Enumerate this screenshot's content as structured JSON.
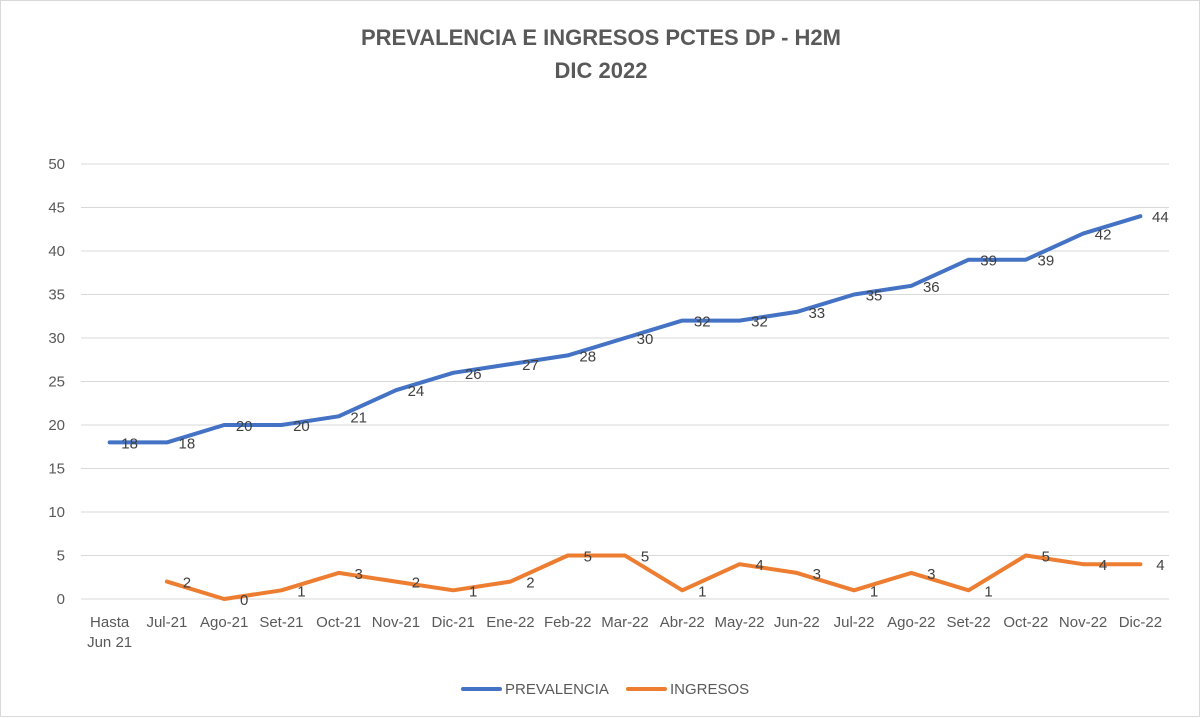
{
  "chart_data": {
    "type": "line",
    "title_lines": [
      "PREVALENCIA  E INGRESOS PCTES DP - H2M",
      "DIC 2022"
    ],
    "categories": [
      [
        "Hasta",
        "Jun 21"
      ],
      [
        "Jul-21"
      ],
      [
        "Ago-21"
      ],
      [
        "Set-21"
      ],
      [
        "Oct-21"
      ],
      [
        "Nov-21"
      ],
      [
        "Dic-21"
      ],
      [
        "Ene-22"
      ],
      [
        "Feb-22"
      ],
      [
        "Mar-22"
      ],
      [
        "Abr-22"
      ],
      [
        "May-22"
      ],
      [
        "Jun-22"
      ],
      [
        "Jul-22"
      ],
      [
        "Ago-22"
      ],
      [
        "Set-22"
      ],
      [
        "Oct-22"
      ],
      [
        "Nov-22"
      ],
      [
        "Dic-22"
      ]
    ],
    "ylim": [
      0,
      50
    ],
    "yticks": [
      0,
      5,
      10,
      15,
      20,
      25,
      30,
      35,
      40,
      45,
      50
    ],
    "grid": true,
    "legend_position": "bottom",
    "series": [
      {
        "name": "PREVALENCIA",
        "color": "#4472C4",
        "values": [
          18,
          18,
          20,
          20,
          21,
          24,
          26,
          27,
          28,
          30,
          32,
          32,
          33,
          35,
          36,
          39,
          39,
          42,
          44
        ]
      },
      {
        "name": "INGRESOS",
        "color": "#ED7D31",
        "values": [
          null,
          2,
          0,
          1,
          3,
          2,
          1,
          2,
          5,
          5,
          1,
          4,
          3,
          1,
          3,
          1,
          5,
          4,
          4
        ]
      }
    ]
  }
}
